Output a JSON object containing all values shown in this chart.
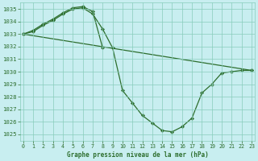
{
  "title": "Graphe pression niveau de la mer (hPa)",
  "background_color": "#c8eef0",
  "grid_color": "#88ccbb",
  "line_color": "#2d6e2d",
  "ylim": [
    1024.5,
    1035.5
  ],
  "yticks": [
    1025,
    1026,
    1027,
    1028,
    1029,
    1030,
    1031,
    1032,
    1033,
    1034,
    1035
  ],
  "xlim": [
    -0.3,
    23.3
  ],
  "xticks": [
    0,
    1,
    2,
    3,
    4,
    5,
    6,
    7,
    8,
    9,
    10,
    11,
    12,
    13,
    14,
    15,
    16,
    17,
    18,
    19,
    20,
    21,
    22,
    23
  ],
  "series": [
    {
      "x": [
        0,
        1,
        2,
        3,
        4,
        5,
        6,
        7,
        8,
        9,
        10,
        11,
        12,
        13,
        14,
        15,
        16,
        17,
        18,
        19,
        20,
        21,
        22,
        23
      ],
      "y": [
        1033.0,
        1033.2,
        1033.7,
        1034.1,
        1034.6,
        1035.0,
        1035.1,
        1034.6,
        1033.4,
        1031.9,
        1028.5,
        1027.5,
        1026.5,
        1025.9,
        1025.3,
        1025.2,
        1025.6,
        1026.3,
        1028.3,
        1029.0,
        1029.9,
        1030.0,
        1030.1,
        1030.1
      ]
    },
    {
      "x": [
        0,
        1,
        2,
        3,
        4,
        5,
        6,
        7,
        8
      ],
      "y": [
        1033.0,
        1033.3,
        1033.8,
        1034.2,
        1034.7,
        1035.1,
        1035.2,
        1034.8,
        1031.9
      ]
    },
    {
      "x": [
        0,
        23
      ],
      "y": [
        1033.0,
        1030.1
      ]
    }
  ]
}
